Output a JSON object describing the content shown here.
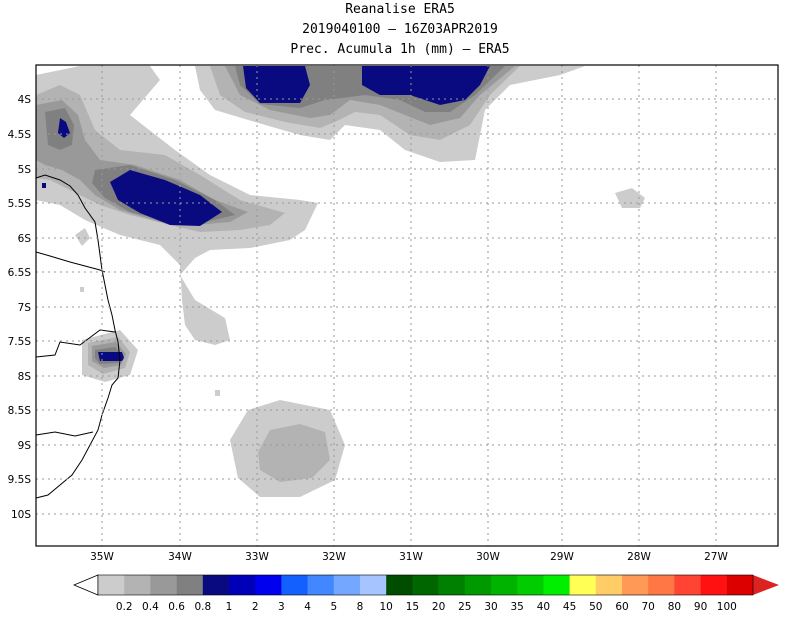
{
  "header": {
    "title": "Reanalise ERA5",
    "time_range": "2019040100 – 16Z03APR2019",
    "variable": "Prec. Acumula 1h (mm) – ERA5"
  },
  "map": {
    "lon_labels": [
      "35W",
      "34W",
      "33W",
      "32W",
      "31W",
      "30W",
      "29W",
      "28W",
      "27W"
    ],
    "lat_labels": [
      "4S",
      "4.5S",
      "5S",
      "5.5S",
      "6S",
      "6.5S",
      "7S",
      "7.5S",
      "8S",
      "8.5S",
      "9S",
      "9.5S",
      "10S"
    ],
    "lon_range": [
      -35.8,
      -26.3
    ],
    "lat_range": [
      -3.4,
      -10.5
    ]
  },
  "colorbar": {
    "labels": [
      "0.2",
      "0.4",
      "0.6",
      "0.8",
      "1",
      "2",
      "3",
      "4",
      "5",
      "8",
      "10",
      "15",
      "20",
      "25",
      "30",
      "35",
      "40",
      "45",
      "50",
      "60",
      "70",
      "80",
      "90",
      "100"
    ],
    "colors": [
      "#cccccc",
      "#b3b3b3",
      "#999999",
      "#808080",
      "#0a0a80",
      "#0000b8",
      "#0000ee",
      "#1460ff",
      "#4287ff",
      "#74a7ff",
      "#a6c4ff",
      "#004d00",
      "#006600",
      "#008000",
      "#009900",
      "#00b300",
      "#00cc00",
      "#00ee00",
      "#ffff55",
      "#ffcc66",
      "#ff9955",
      "#ff7744",
      "#ff4433",
      "#ff1111",
      "#dd0000"
    ],
    "under_color": "#ffffff",
    "over_color": "#dd2222"
  }
}
